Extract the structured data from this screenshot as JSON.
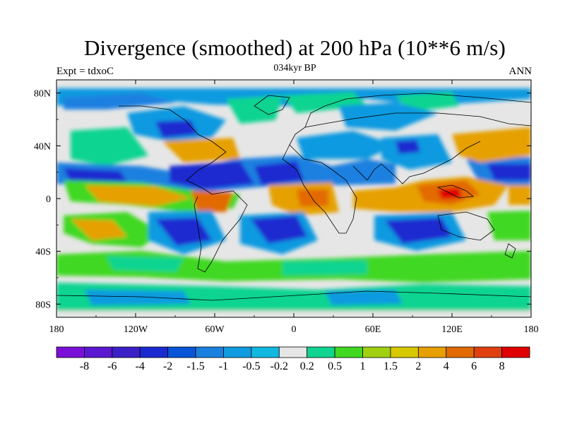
{
  "title": "Divergence (smoothed) at 200 hPa (10**6 m/s)",
  "subtitle_left": "Expt = tdxoC",
  "subtitle_center": "034kyr BP",
  "subtitle_right": "ANN",
  "y_ticks": [
    "80N",
    "40N",
    "0",
    "40S",
    "80S"
  ],
  "x_ticks": [
    "180",
    "120W",
    "60W",
    "0",
    "60E",
    "120E",
    "180"
  ],
  "colorbar": {
    "labels": [
      "-8",
      "-6",
      "-4",
      "-2",
      "-1.5",
      "-1",
      "-0.5",
      "-0.2",
      "0.2",
      "0.5",
      "1",
      "1.5",
      "2",
      "4",
      "6",
      "8"
    ],
    "colors": [
      "#7a10d8",
      "#5a18d0",
      "#3c20c8",
      "#1a2ad0",
      "#0855d8",
      "#1a80e0",
      "#109ae0",
      "#10b8e0",
      "#e6e6e6",
      "#10d490",
      "#40d820",
      "#a0d010",
      "#d8c800",
      "#e6a000",
      "#e26a00",
      "#e04010",
      "#e00000"
    ]
  },
  "map": {
    "projection": "cylindrical equidistant",
    "lon_range": [
      -180,
      180
    ],
    "lat_range": [
      -90,
      90
    ]
  }
}
